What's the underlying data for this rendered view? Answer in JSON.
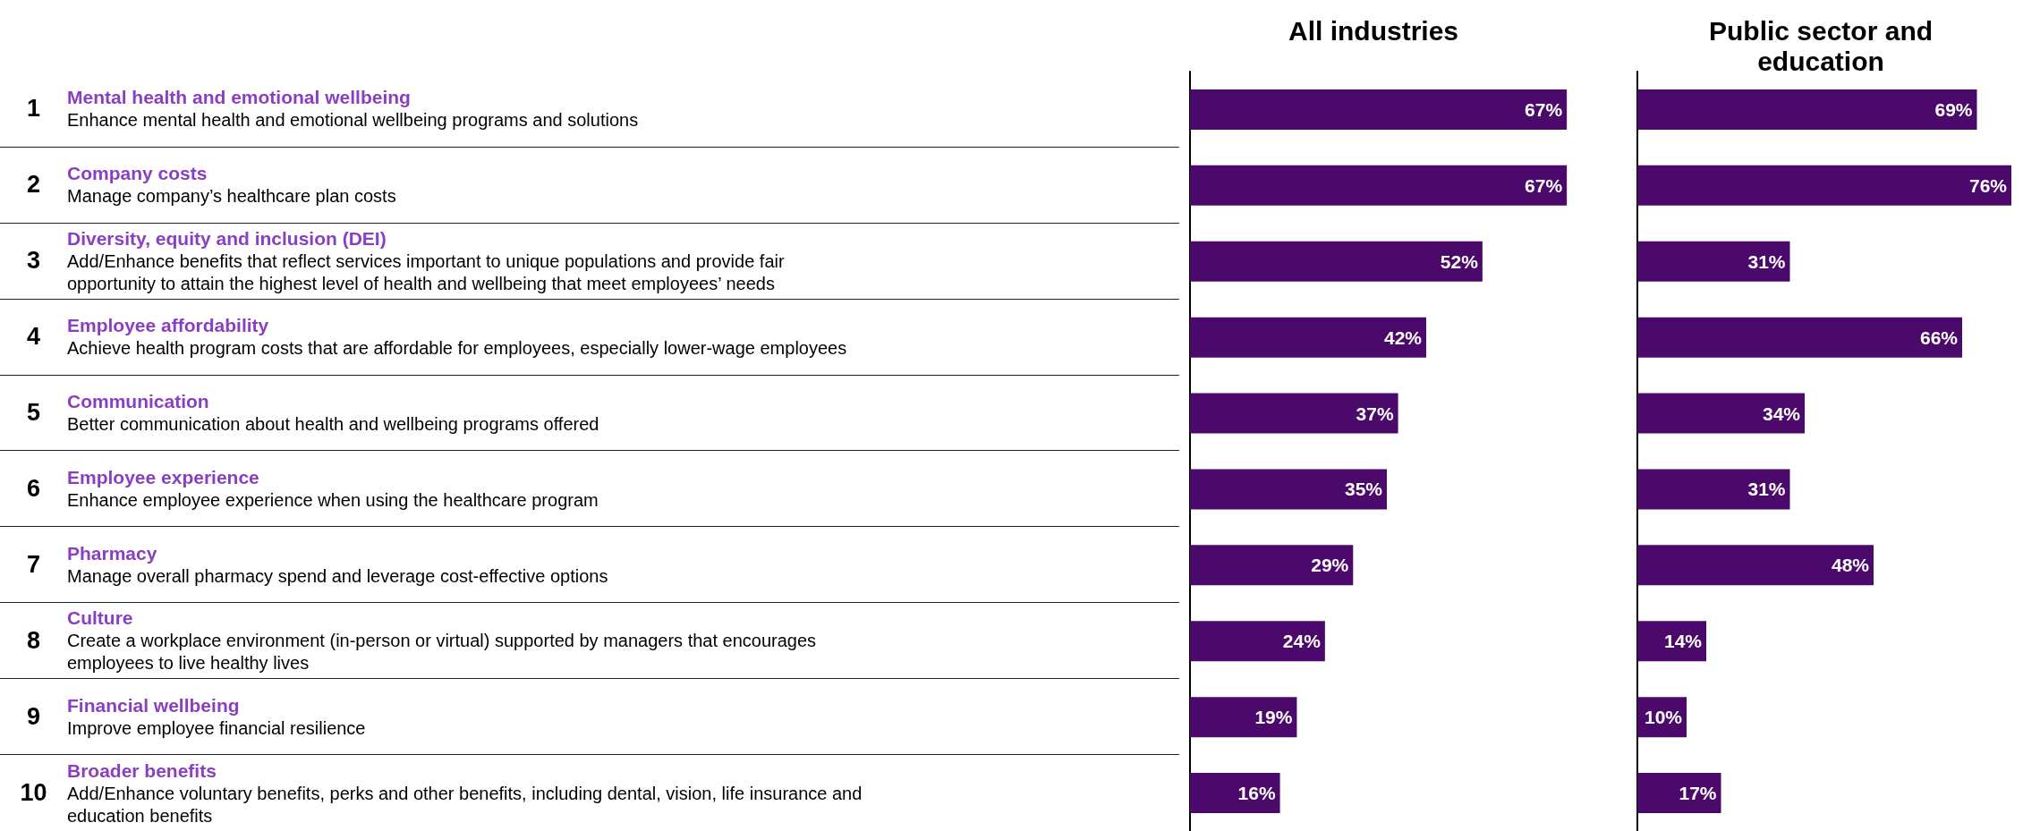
{
  "chart_data": [
    {
      "type": "bar",
      "orientation": "horizontal",
      "title": "All industries",
      "tick_labels": "y",
      "categories": [
        "1\nMental health and emotional wellbeing\nEnhance mental health and emotional wellbeing programs and solutions",
        "2\nCompany costs\nManage company’s healthcare plan costs",
        "3\nDiversity, equity and inclusion (DEI)\nAdd/Enhance benefits that reflect services important to unique populations and provide fair\nopportunity to attain the highest level of health and wellbeing that meet employees’ needs",
        "4\nEmployee affordability\nAchieve health program costs that are affordable for employees, especially lower-wage employees",
        "5\nCommunication\nBetter communication about health and wellbeing programs offered",
        "6\nEmployee experience\nEnhance employee experience when using the healthcare program",
        "7\nPharmacy\nManage overall pharmacy spend and leverage cost-effective options",
        "8\nCulture\nCreate a workplace environment (in-person or virtual) supported by managers that encourages\nemployees to live healthy lives",
        "9\nFinancial wellbeing\nImprove employee financial resilience",
        "10\nBroader benefits\nAdd/Enhance voluntary benefits, perks and other benefits, including dental, vision, life insurance and\neducation benefits"
      ],
      "series": [
        {
          "color": "#4b0a6b",
          "values": [
            67,
            67,
            52,
            42,
            37,
            35,
            29,
            24,
            19,
            16
          ],
          "value_labels": [
            "67%",
            "67%",
            "52%",
            "42%",
            "37%",
            "35%",
            "29%",
            "24%",
            "19%",
            "16%"
          ]
        }
      ]
    },
    {
      "type": "bar",
      "orientation": "horizontal",
      "title": "Public sector and\neducation",
      "tick_labels": false,
      "categories": [
        null,
        null,
        null,
        null,
        null,
        null,
        null,
        null,
        null,
        null
      ],
      "series": [
        {
          "color": "#4b0a6b",
          "values": [
            69,
            76,
            31,
            66,
            34,
            31,
            48,
            14,
            10,
            17
          ],
          "value_labels": [
            "69%",
            "76%",
            "31%",
            "66%",
            "34%",
            "31%",
            "48%",
            "14%",
            "10%",
            "17%"
          ]
        }
      ]
    }
  ]
}
